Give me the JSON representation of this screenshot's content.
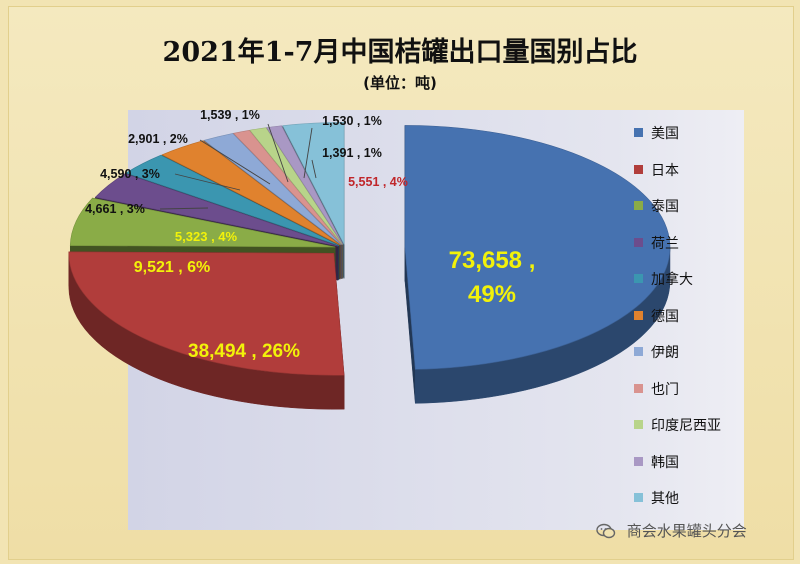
{
  "header": {
    "title": "2021年1-7月中国桔罐出口量国别占比",
    "subtitle": "(单位：吨)"
  },
  "watermark": {
    "text": "商会水果罐头分会",
    "icon": "wechat-icon"
  },
  "chart_data": {
    "type": "pie",
    "title": "2021年1-7月中国桔罐出口量国别占比",
    "subtitle": "(单位：吨)",
    "legend_position": "right",
    "labels": [
      "美国",
      "日本",
      "泰国",
      "荷兰",
      "加拿大",
      "德国",
      "伊朗",
      "也门",
      "印度尼西亚",
      "韩国",
      "其他"
    ],
    "values": [
      73658,
      38494,
      9521,
      5323,
      4661,
      4590,
      2901,
      1539,
      1530,
      1391,
      5551
    ],
    "percents": [
      "49%",
      "26%",
      "6%",
      "4%",
      "3%",
      "3%",
      "2%",
      "1%",
      "1%",
      "1%",
      "4%"
    ],
    "data_labels": [
      "73,658 ,",
      "38,494 , 26%",
      "9,521 , 6%",
      "5,323 , 4%",
      "4,661 , 3%",
      "4,590 , 3%",
      "2,901 , 2%",
      "1,539 , 1%",
      "1,530 , 1%",
      "1,391 , 1%",
      "5,551 , 4%"
    ],
    "colors": [
      "#4672b0",
      "#b13d3b",
      "#8aac47",
      "#6c4d8d",
      "#3b96b0",
      "#e0822e",
      "#8ea9d6",
      "#d9938f",
      "#b8d48a",
      "#a998c4",
      "#86c1d8"
    ]
  }
}
